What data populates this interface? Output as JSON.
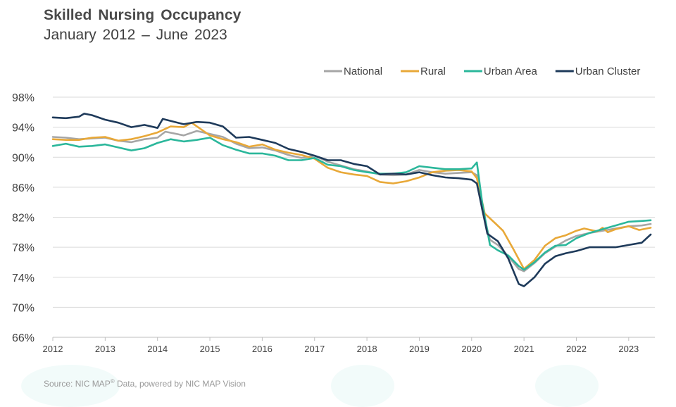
{
  "header": {
    "title": "Skilled Nursing Occupancy",
    "subtitle": "January 2012 – June 2023"
  },
  "footer": {
    "source_prefix": "Source: NIC MAP",
    "source_reg": "®",
    "source_suffix": " Data, powered by NIC MAP Vision"
  },
  "chart_data": {
    "type": "line",
    "title": "Skilled Nursing Occupancy",
    "subtitle": "January 2012 – June 2023",
    "xlabel": "",
    "ylabel": "",
    "xlim": [
      2012,
      2023.5
    ],
    "ylim": [
      66,
      98
    ],
    "yticks": [
      98,
      94,
      90,
      86,
      82,
      78,
      74,
      70,
      66
    ],
    "ytick_labels": [
      "98%",
      "94%",
      "90%",
      "86%",
      "82%",
      "78%",
      "74%",
      "70%",
      "66%"
    ],
    "xticks": [
      2012,
      2013,
      2014,
      2015,
      2016,
      2017,
      2018,
      2019,
      2020,
      2021,
      2022,
      2023
    ],
    "xtick_labels": [
      "2012",
      "2013",
      "2014",
      "2015",
      "2016",
      "2017",
      "2018",
      "2019",
      "2020",
      "2021",
      "2022",
      "2023"
    ],
    "grid": "horizontal",
    "legend_position": "top-right",
    "series": [
      {
        "name": "National",
        "color": "#a6a6a6",
        "points": [
          [
            2012.0,
            92.7
          ],
          [
            2012.25,
            92.6
          ],
          [
            2012.5,
            92.4
          ],
          [
            2012.75,
            92.5
          ],
          [
            2013.0,
            92.6
          ],
          [
            2013.25,
            92.2
          ],
          [
            2013.5,
            92.0
          ],
          [
            2013.75,
            92.4
          ],
          [
            2014.0,
            92.6
          ],
          [
            2014.15,
            93.4
          ],
          [
            2014.5,
            92.9
          ],
          [
            2014.75,
            93.5
          ],
          [
            2015.0,
            93.1
          ],
          [
            2015.25,
            92.7
          ],
          [
            2015.5,
            91.8
          ],
          [
            2015.75,
            91.2
          ],
          [
            2016.0,
            91.3
          ],
          [
            2016.25,
            90.9
          ],
          [
            2016.5,
            90.3
          ],
          [
            2016.75,
            89.9
          ],
          [
            2017.0,
            90.2
          ],
          [
            2017.25,
            89.4
          ],
          [
            2017.5,
            88.9
          ],
          [
            2017.75,
            88.4
          ],
          [
            2018.0,
            88.1
          ],
          [
            2018.25,
            87.7
          ],
          [
            2018.5,
            87.6
          ],
          [
            2018.75,
            87.7
          ],
          [
            2019.0,
            88.3
          ],
          [
            2019.25,
            88.0
          ],
          [
            2019.5,
            87.8
          ],
          [
            2019.75,
            87.9
          ],
          [
            2020.0,
            88.0
          ],
          [
            2020.1,
            87.6
          ],
          [
            2020.2,
            83.0
          ],
          [
            2020.35,
            79.0
          ],
          [
            2020.5,
            78.3
          ],
          [
            2020.7,
            76.8
          ],
          [
            2020.9,
            75.1
          ],
          [
            2021.0,
            74.8
          ],
          [
            2021.2,
            75.9
          ],
          [
            2021.4,
            77.2
          ],
          [
            2021.6,
            78.1
          ],
          [
            2021.8,
            78.9
          ],
          [
            2022.0,
            79.5
          ],
          [
            2022.25,
            79.9
          ],
          [
            2022.5,
            80.2
          ],
          [
            2022.75,
            80.5
          ],
          [
            2023.0,
            80.8
          ],
          [
            2023.25,
            80.9
          ],
          [
            2023.42,
            81.1
          ]
        ]
      },
      {
        "name": "Rural",
        "color": "#e8a838",
        "points": [
          [
            2012.0,
            92.4
          ],
          [
            2012.25,
            92.3
          ],
          [
            2012.5,
            92.3
          ],
          [
            2012.75,
            92.6
          ],
          [
            2013.0,
            92.7
          ],
          [
            2013.25,
            92.2
          ],
          [
            2013.5,
            92.4
          ],
          [
            2013.75,
            92.8
          ],
          [
            2014.0,
            93.3
          ],
          [
            2014.25,
            94.1
          ],
          [
            2014.5,
            94.0
          ],
          [
            2014.65,
            94.6
          ],
          [
            2015.0,
            92.9
          ],
          [
            2015.25,
            92.4
          ],
          [
            2015.5,
            92.0
          ],
          [
            2015.75,
            91.4
          ],
          [
            2016.0,
            91.7
          ],
          [
            2016.25,
            91.0
          ],
          [
            2016.5,
            90.6
          ],
          [
            2016.75,
            90.3
          ],
          [
            2017.0,
            89.8
          ],
          [
            2017.25,
            88.6
          ],
          [
            2017.5,
            88.0
          ],
          [
            2017.75,
            87.7
          ],
          [
            2018.0,
            87.5
          ],
          [
            2018.25,
            86.7
          ],
          [
            2018.5,
            86.5
          ],
          [
            2018.75,
            86.8
          ],
          [
            2019.0,
            87.3
          ],
          [
            2019.25,
            88.0
          ],
          [
            2019.5,
            88.2
          ],
          [
            2019.75,
            88.3
          ],
          [
            2020.0,
            88.1
          ],
          [
            2020.1,
            87.2
          ],
          [
            2020.25,
            82.5
          ],
          [
            2020.45,
            81.2
          ],
          [
            2020.6,
            80.2
          ],
          [
            2020.8,
            77.7
          ],
          [
            2021.0,
            75.1
          ],
          [
            2021.2,
            76.3
          ],
          [
            2021.4,
            78.2
          ],
          [
            2021.6,
            79.2
          ],
          [
            2021.8,
            79.6
          ],
          [
            2022.0,
            80.2
          ],
          [
            2022.15,
            80.5
          ],
          [
            2022.4,
            80.1
          ],
          [
            2022.5,
            80.6
          ],
          [
            2022.6,
            80.0
          ],
          [
            2022.75,
            80.4
          ],
          [
            2023.0,
            80.8
          ],
          [
            2023.2,
            80.3
          ],
          [
            2023.42,
            80.6
          ]
        ]
      },
      {
        "name": "Urban Area",
        "color": "#2bb79b",
        "points": [
          [
            2012.0,
            91.5
          ],
          [
            2012.25,
            91.8
          ],
          [
            2012.5,
            91.4
          ],
          [
            2012.75,
            91.5
          ],
          [
            2013.0,
            91.7
          ],
          [
            2013.25,
            91.3
          ],
          [
            2013.5,
            90.9
          ],
          [
            2013.75,
            91.2
          ],
          [
            2014.0,
            91.9
          ],
          [
            2014.25,
            92.4
          ],
          [
            2014.5,
            92.1
          ],
          [
            2014.75,
            92.3
          ],
          [
            2015.0,
            92.6
          ],
          [
            2015.25,
            91.6
          ],
          [
            2015.5,
            91.0
          ],
          [
            2015.75,
            90.5
          ],
          [
            2016.0,
            90.5
          ],
          [
            2016.25,
            90.2
          ],
          [
            2016.5,
            89.6
          ],
          [
            2016.75,
            89.6
          ],
          [
            2017.0,
            89.9
          ],
          [
            2017.25,
            89.0
          ],
          [
            2017.5,
            88.8
          ],
          [
            2017.75,
            88.3
          ],
          [
            2018.0,
            88.0
          ],
          [
            2018.25,
            87.8
          ],
          [
            2018.5,
            87.8
          ],
          [
            2018.75,
            88.0
          ],
          [
            2019.0,
            88.8
          ],
          [
            2019.25,
            88.6
          ],
          [
            2019.5,
            88.4
          ],
          [
            2019.75,
            88.4
          ],
          [
            2020.0,
            88.5
          ],
          [
            2020.1,
            89.3
          ],
          [
            2020.2,
            84.0
          ],
          [
            2020.35,
            78.3
          ],
          [
            2020.5,
            77.6
          ],
          [
            2020.7,
            76.9
          ],
          [
            2020.9,
            75.5
          ],
          [
            2021.0,
            75.0
          ],
          [
            2021.2,
            76.0
          ],
          [
            2021.4,
            77.3
          ],
          [
            2021.6,
            78.2
          ],
          [
            2021.8,
            78.3
          ],
          [
            2022.0,
            79.2
          ],
          [
            2022.25,
            79.9
          ],
          [
            2022.5,
            80.4
          ],
          [
            2022.75,
            80.9
          ],
          [
            2023.0,
            81.4
          ],
          [
            2023.25,
            81.5
          ],
          [
            2023.42,
            81.6
          ]
        ]
      },
      {
        "name": "Urban Cluster",
        "color": "#1e3a5a",
        "points": [
          [
            2012.0,
            95.3
          ],
          [
            2012.25,
            95.2
          ],
          [
            2012.5,
            95.4
          ],
          [
            2012.6,
            95.8
          ],
          [
            2012.75,
            95.6
          ],
          [
            2013.0,
            95.0
          ],
          [
            2013.25,
            94.6
          ],
          [
            2013.5,
            94.0
          ],
          [
            2013.75,
            94.3
          ],
          [
            2014.0,
            93.9
          ],
          [
            2014.1,
            95.1
          ],
          [
            2014.5,
            94.4
          ],
          [
            2014.75,
            94.7
          ],
          [
            2015.0,
            94.6
          ],
          [
            2015.25,
            94.1
          ],
          [
            2015.5,
            92.6
          ],
          [
            2015.75,
            92.7
          ],
          [
            2016.0,
            92.3
          ],
          [
            2016.25,
            91.9
          ],
          [
            2016.5,
            91.1
          ],
          [
            2016.75,
            90.7
          ],
          [
            2017.0,
            90.2
          ],
          [
            2017.25,
            89.6
          ],
          [
            2017.5,
            89.6
          ],
          [
            2017.75,
            89.1
          ],
          [
            2018.0,
            88.8
          ],
          [
            2018.25,
            87.7
          ],
          [
            2018.5,
            87.8
          ],
          [
            2018.75,
            87.7
          ],
          [
            2019.0,
            88.0
          ],
          [
            2019.25,
            87.6
          ],
          [
            2019.5,
            87.3
          ],
          [
            2019.75,
            87.2
          ],
          [
            2020.0,
            87.0
          ],
          [
            2020.1,
            86.5
          ],
          [
            2020.3,
            79.8
          ],
          [
            2020.5,
            78.8
          ],
          [
            2020.7,
            76.5
          ],
          [
            2020.9,
            73.1
          ],
          [
            2021.0,
            72.8
          ],
          [
            2021.2,
            74.0
          ],
          [
            2021.4,
            75.8
          ],
          [
            2021.6,
            76.8
          ],
          [
            2021.8,
            77.2
          ],
          [
            2022.0,
            77.5
          ],
          [
            2022.25,
            78.0
          ],
          [
            2022.5,
            78.0
          ],
          [
            2022.75,
            78.0
          ],
          [
            2023.0,
            78.3
          ],
          [
            2023.25,
            78.6
          ],
          [
            2023.42,
            79.7
          ]
        ]
      }
    ]
  }
}
